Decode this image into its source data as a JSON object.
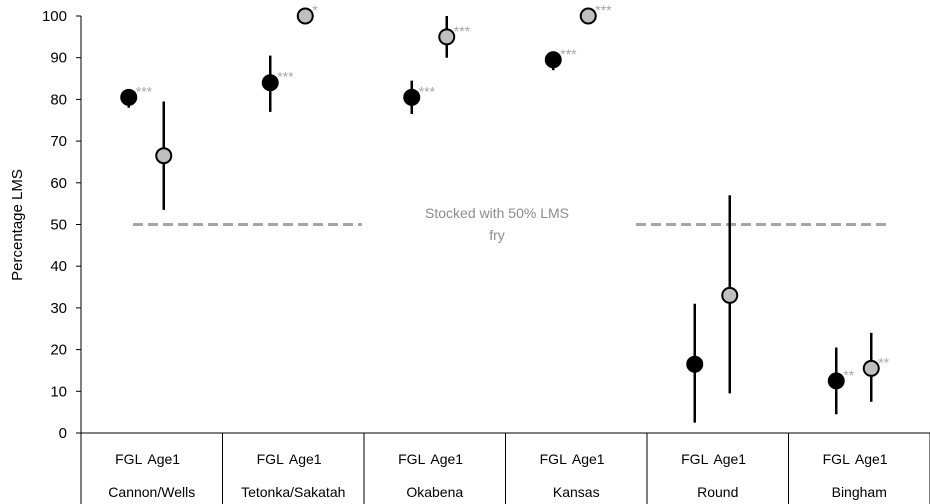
{
  "chart_data": {
    "type": "scatter",
    "ylabel": "Percentage LMS",
    "ylim": [
      0,
      100
    ],
    "yticks": [
      0,
      10,
      20,
      30,
      40,
      50,
      60,
      70,
      80,
      90,
      100
    ],
    "subcategories": [
      "FGL",
      "Age1"
    ],
    "categories": [
      "Cannon/Wells",
      "Tetonka/Sakatah",
      "Okabena",
      "Kansas",
      "Round",
      "Bingham"
    ],
    "reference_line": {
      "value": 50,
      "label": "Stocked with 50% LMS fry",
      "style": "dashed",
      "color": "#a6a6a6"
    },
    "series": [
      {
        "name": "FGL",
        "marker_color": "#000000",
        "points": [
          {
            "category": "Cannon/Wells",
            "y": 80.5,
            "low": 78,
            "high": 82.5,
            "sig": "***"
          },
          {
            "category": "Tetonka/Sakatah",
            "y": 84,
            "low": 77,
            "high": 90.5,
            "sig": "***"
          },
          {
            "category": "Okabena",
            "y": 80.5,
            "low": 76.5,
            "high": 84.5,
            "sig": "***"
          },
          {
            "category": "Kansas",
            "y": 89.5,
            "low": 87,
            "high": 91.5,
            "sig": "***"
          },
          {
            "category": "Round",
            "y": 16.5,
            "low": 2.5,
            "high": 31,
            "sig": ""
          },
          {
            "category": "Bingham",
            "y": 12.5,
            "low": 4.5,
            "high": 20.5,
            "sig": "**"
          }
        ]
      },
      {
        "name": "Age1",
        "marker_color": "#bfbfbf",
        "points": [
          {
            "category": "Cannon/Wells",
            "y": 66.5,
            "low": 53.5,
            "high": 79.5,
            "sig": ""
          },
          {
            "category": "Tetonka/Sakatah",
            "y": 100,
            "low": 100,
            "high": 100,
            "sig": "*"
          },
          {
            "category": "Okabena",
            "y": 95,
            "low": 90,
            "high": 100,
            "sig": "***"
          },
          {
            "category": "Kansas",
            "y": 100,
            "low": 100,
            "high": 100,
            "sig": "***"
          },
          {
            "category": "Round",
            "y": 33,
            "low": 9.5,
            "high": 57,
            "sig": ""
          },
          {
            "category": "Bingham",
            "y": 15.5,
            "low": 7.5,
            "high": 24,
            "sig": "**"
          }
        ]
      }
    ],
    "grid": false,
    "legend": "none"
  }
}
